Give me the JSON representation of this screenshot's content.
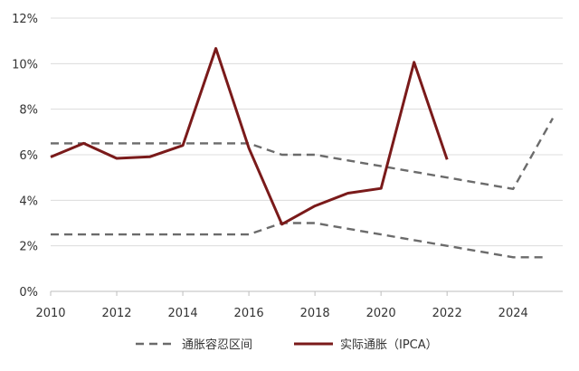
{
  "chart_data": {
    "type": "line",
    "xlim": [
      2010,
      2025.5
    ],
    "ylim": [
      0,
      12
    ],
    "x_ticks": [
      "2010",
      "2012",
      "2014",
      "2016",
      "2018",
      "2020",
      "2022",
      "2024"
    ],
    "y_ticks": [
      "0%",
      "2%",
      "4%",
      "6%",
      "8%",
      "10%",
      "12%"
    ],
    "grid": "horizontal",
    "legend_position": "bottom",
    "series": [
      {
        "name": "通胀容忍区间",
        "style": "dashed",
        "color": "#6b6b6b",
        "points": [
          [
            2010,
            6.5
          ],
          [
            2011,
            6.5
          ],
          [
            2012,
            6.5
          ],
          [
            2013,
            6.5
          ],
          [
            2014,
            6.5
          ],
          [
            2015,
            6.5
          ],
          [
            2016,
            6.5
          ],
          [
            2017,
            6.0
          ],
          [
            2018,
            6.0
          ],
          [
            2019,
            5.75
          ],
          [
            2020,
            5.5
          ],
          [
            2021,
            5.25
          ],
          [
            2022,
            5.0
          ],
          [
            2023,
            4.75
          ],
          [
            2024,
            4.5
          ],
          [
            2025.2,
            7.6
          ]
        ]
      },
      {
        "name": "",
        "style": "dashed",
        "color": "#6b6b6b",
        "points": [
          [
            2010,
            2.5
          ],
          [
            2011,
            2.5
          ],
          [
            2012,
            2.5
          ],
          [
            2013,
            2.5
          ],
          [
            2014,
            2.5
          ],
          [
            2015,
            2.5
          ],
          [
            2016,
            2.5
          ],
          [
            2017,
            3.0
          ],
          [
            2018,
            3.0
          ],
          [
            2019,
            2.75
          ],
          [
            2020,
            2.5
          ],
          [
            2021,
            2.25
          ],
          [
            2022,
            2.0
          ],
          [
            2023,
            1.75
          ],
          [
            2024,
            1.5
          ],
          [
            2025,
            1.5
          ]
        ]
      },
      {
        "name": "实际通胀（IPCA）",
        "style": "solid",
        "color": "#7a1a1a",
        "points": [
          [
            2010,
            5.9
          ],
          [
            2011,
            6.5
          ],
          [
            2012,
            5.84
          ],
          [
            2013,
            5.91
          ],
          [
            2014,
            6.41
          ],
          [
            2015,
            10.67
          ],
          [
            2016,
            6.29
          ],
          [
            2017,
            2.95
          ],
          [
            2018,
            3.75
          ],
          [
            2019,
            4.31
          ],
          [
            2020,
            4.52
          ],
          [
            2021,
            10.06
          ],
          [
            2022,
            5.79
          ]
        ]
      }
    ],
    "legend": [
      {
        "label": "通胀容忍区间",
        "style": "dashed",
        "color": "#6b6b6b"
      },
      {
        "label": "实际通胀（IPCA）",
        "style": "solid",
        "color": "#7a1a1a"
      }
    ]
  }
}
